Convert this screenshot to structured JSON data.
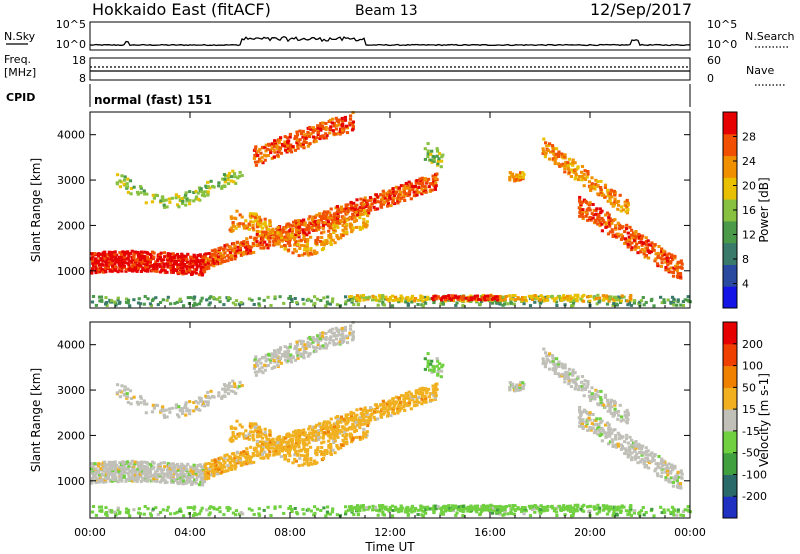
{
  "header": {
    "station": "Hokkaido East (fitACF)",
    "beam": "Beam 13",
    "date": "12/Sep/2017"
  },
  "noise_panel": {
    "left_label": "N.Sky",
    "right_label": "N.Search",
    "left_ticks": [
      "10^5",
      "10^0"
    ],
    "right_ticks": [
      "10^5",
      "10^0"
    ]
  },
  "freq_panel": {
    "left_label": "Freq.",
    "left_unit": "[MHz]",
    "right_label": "Nave",
    "left_ticks": [
      "18",
      "8"
    ],
    "right_ticks": [
      "60",
      "0"
    ]
  },
  "cpid": {
    "label": "CPID",
    "value": "normal (fast) 151"
  },
  "colors": {
    "power_scale": [
      "#1414e6",
      "#2a4aa0",
      "#3a7a6a",
      "#4a9a4a",
      "#88c040",
      "#e8c000",
      "#f09000",
      "#f05000",
      "#e60000"
    ],
    "velocity_scale": [
      "#2030c0",
      "#2a6a6a",
      "#40a040",
      "#70d040",
      "#c0c0b8",
      "#f0b020",
      "#f08000",
      "#f04000",
      "#e60000"
    ]
  },
  "chart_data": [
    {
      "type": "heatmap",
      "name": "Power",
      "ylabel": "Slant Range [km]",
      "xlabel": "",
      "x_range": [
        "00:00",
        "00:00"
      ],
      "ylim": [
        180,
        4500
      ],
      "yticks": [
        "1000",
        "2000",
        "3000",
        "4000"
      ],
      "colorbar": {
        "label": "Power [dB]",
        "range": [
          0,
          32
        ],
        "ticks": [
          "4",
          "8",
          "12",
          "16",
          "20",
          "24",
          "28"
        ]
      }
    },
    {
      "type": "heatmap",
      "name": "Velocity",
      "ylabel": "Slant Range [km]",
      "xlabel": "Time UT",
      "x_range": [
        "00:00",
        "00:00"
      ],
      "ylim": [
        180,
        4500
      ],
      "yticks": [
        "1000",
        "2000",
        "3000",
        "4000"
      ],
      "xticks": [
        "00:00",
        "04:00",
        "08:00",
        "12:00",
        "16:00",
        "20:00",
        "00:00"
      ],
      "colorbar": {
        "label": "Velocity [m s-1]",
        "ticks": [
          "200",
          "100",
          "50",
          "15",
          "-15",
          "-50",
          "-100",
          "-200"
        ]
      }
    }
  ]
}
